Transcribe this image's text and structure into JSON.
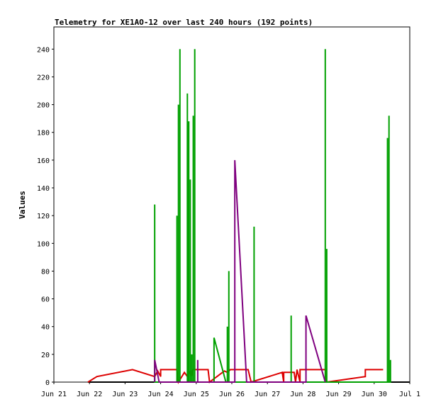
{
  "chart_data": {
    "type": "line",
    "title": "Telemetry for XE1AO-12 over last 240 hours (192 points)",
    "ylabel": "Values",
    "xlabel": "",
    "xlim": [
      0,
      240
    ],
    "ylim": [
      0,
      256
    ],
    "y_ticks": [
      0,
      20,
      40,
      60,
      80,
      100,
      120,
      140,
      160,
      180,
      200,
      220,
      240
    ],
    "x_ticks": [
      {
        "x": 0,
        "label": "Jun 21"
      },
      {
        "x": 24,
        "label": "Jun 22"
      },
      {
        "x": 48,
        "label": "Jun 23"
      },
      {
        "x": 72,
        "label": "Jun 24"
      },
      {
        "x": 96,
        "label": "Jun 25"
      },
      {
        "x": 120,
        "label": "Jun 26"
      },
      {
        "x": 144,
        "label": "Jun 27"
      },
      {
        "x": 168,
        "label": "Jun 28"
      },
      {
        "x": 192,
        "label": "Jun 29"
      },
      {
        "x": 216,
        "label": "Jun 30"
      },
      {
        "x": 240,
        "label": "Jul 1"
      }
    ],
    "grid": false,
    "legend": "none",
    "series": [
      {
        "color": "#000000",
        "points": [
          [
            23,
            0
          ],
          [
            240,
            0
          ]
        ]
      },
      {
        "color": "#dd0000",
        "points": [
          [
            23,
            0
          ],
          [
            29,
            4
          ],
          [
            53,
            9
          ],
          [
            68,
            4
          ],
          [
            70,
            8
          ],
          [
            72,
            4
          ],
          [
            72,
            9
          ],
          [
            83,
            9
          ],
          [
            84,
            0
          ],
          [
            88,
            7
          ],
          [
            90,
            4
          ],
          [
            92,
            8
          ],
          [
            93,
            4
          ],
          [
            94,
            9
          ],
          [
            104,
            9
          ],
          [
            105,
            0
          ],
          [
            115,
            8
          ],
          [
            117,
            7
          ],
          [
            119,
            9
          ],
          [
            131,
            9
          ],
          [
            133,
            0
          ],
          [
            154,
            7
          ],
          [
            155,
            0
          ],
          [
            155,
            7
          ],
          [
            162,
            7
          ],
          [
            163,
            0
          ],
          [
            164,
            9
          ],
          [
            166,
            0
          ],
          [
            166,
            9
          ],
          [
            183,
            9
          ],
          [
            184,
            0
          ],
          [
            210,
            4
          ],
          [
            210,
            9
          ],
          [
            222,
            9
          ]
        ]
      },
      {
        "color": "#00a000",
        "points": [
          [
            68,
            0
          ],
          [
            68,
            128
          ],
          [
            68,
            0
          ],
          [
            83,
            0
          ],
          [
            83,
            120
          ],
          [
            83,
            0
          ],
          [
            84,
            0
          ],
          [
            84,
            200
          ],
          [
            84,
            0
          ],
          [
            85,
            0
          ],
          [
            85,
            240
          ],
          [
            85,
            0
          ],
          [
            90,
            0
          ],
          [
            90,
            208
          ],
          [
            90,
            0
          ],
          [
            91,
            0
          ],
          [
            91,
            188
          ],
          [
            91,
            0
          ],
          [
            92,
            0
          ],
          [
            92,
            146
          ],
          [
            92,
            0
          ],
          [
            93,
            0
          ],
          [
            93,
            20
          ],
          [
            93,
            0
          ],
          [
            94,
            0
          ],
          [
            94,
            192
          ],
          [
            94,
            0
          ],
          [
            95,
            0
          ],
          [
            95,
            240
          ],
          [
            95,
            0
          ],
          [
            108,
            0
          ],
          [
            108,
            32
          ],
          [
            116,
            0
          ],
          [
            117,
            0
          ],
          [
            117,
            40
          ],
          [
            117,
            0
          ],
          [
            118,
            0
          ],
          [
            118,
            80
          ],
          [
            118,
            0
          ],
          [
            135,
            0
          ],
          [
            135,
            112
          ],
          [
            135,
            0
          ],
          [
            160,
            0
          ],
          [
            160,
            48
          ],
          [
            160,
            0
          ],
          [
            183,
            0
          ],
          [
            183,
            240
          ],
          [
            183,
            0
          ],
          [
            184,
            0
          ],
          [
            184,
            96
          ],
          [
            184,
            0
          ],
          [
            225,
            0
          ],
          [
            225,
            176
          ],
          [
            225,
            0
          ],
          [
            226,
            0
          ],
          [
            226,
            192
          ],
          [
            226,
            0
          ],
          [
            227,
            0
          ],
          [
            227,
            16
          ],
          [
            227,
            0
          ]
        ]
      },
      {
        "color": "#7f007f",
        "points": [
          [
            68,
            0
          ],
          [
            68,
            16
          ],
          [
            71,
            0
          ],
          [
            97,
            0
          ],
          [
            97,
            16
          ],
          [
            97,
            0
          ],
          [
            122,
            0
          ],
          [
            122,
            160
          ],
          [
            130,
            0
          ],
          [
            170,
            0
          ],
          [
            170,
            48
          ],
          [
            183,
            0
          ]
        ]
      }
    ]
  }
}
